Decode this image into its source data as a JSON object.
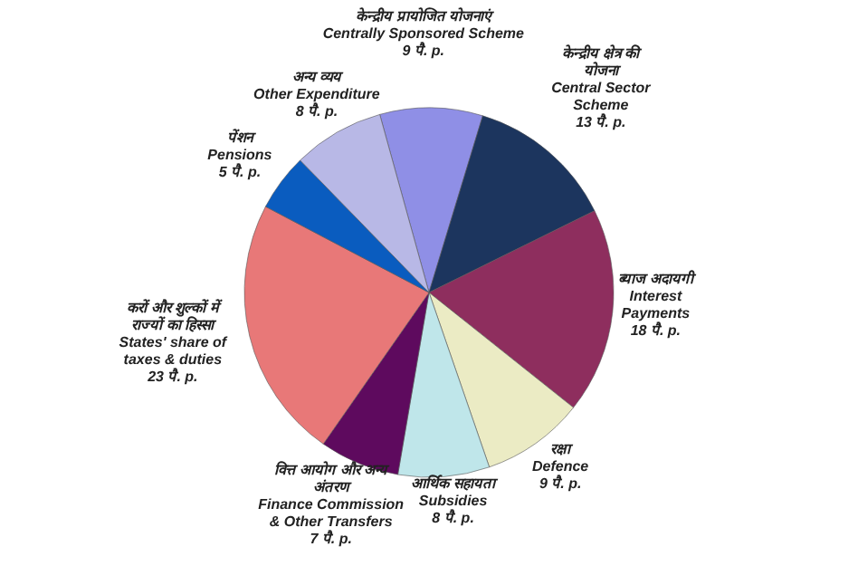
{
  "chart_data": {
    "type": "pie",
    "categories": [
      "केन्द्रीय प्रायोजित योजनाएं\nCentrally Sponsored Scheme",
      "केन्द्रीय क्षेत्र की\nयोजना\nCentral Sector\nScheme",
      "ब्याज अदायगी\nInterest\nPayments",
      "रक्षा\nDefence",
      "आर्थिक सहायता\nSubsidies",
      "वित्त आयोग और अन्य\nअंतरण\nFinance Commission\n& Other Transfers",
      "करों और शुल्कों में\nराज्यों का हिस्सा\nStates' share of\ntaxes & duties",
      "पेंशन\nPensions",
      "अन्य व्यय\nOther Expenditure"
    ],
    "values": [
      9,
      13,
      18,
      9,
      8,
      7,
      23,
      5,
      8
    ],
    "value_labels": [
      "9 पै. p.",
      "13 पै. p.",
      "18 पै. p.",
      "9 पै. p.",
      "8 पै. p.",
      "7 पै. p.",
      "23 पै. p.",
      "5 पै. p.",
      "8 पै. p."
    ],
    "colors": [
      "#8f8fe6",
      "#1c355e",
      "#8e2e5e",
      "#ebebc4",
      "#bfe6ea",
      "#5e0a5e",
      "#e87878",
      "#0a5cbf",
      "#b8b8e6"
    ]
  }
}
